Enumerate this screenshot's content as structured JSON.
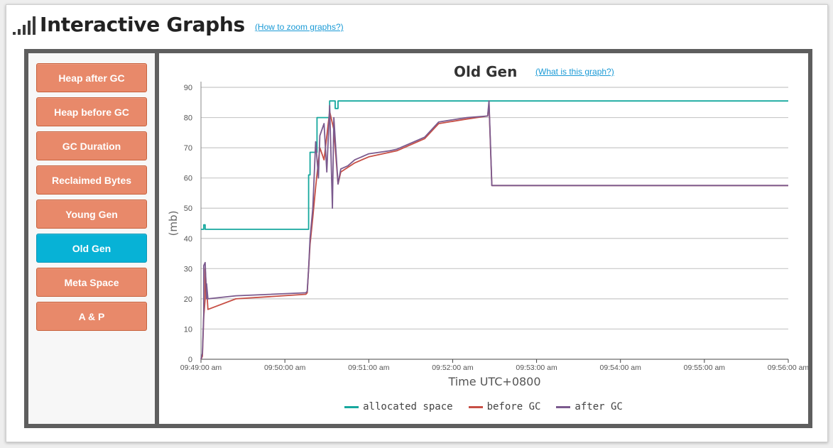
{
  "header": {
    "title": "Interactive Graphs",
    "help_link": "(How to zoom graphs?)"
  },
  "sidebar": {
    "items": [
      {
        "label": "Heap after GC",
        "active": false
      },
      {
        "label": "Heap before GC",
        "active": false
      },
      {
        "label": "GC Duration",
        "active": false
      },
      {
        "label": "Reclaimed Bytes",
        "active": false
      },
      {
        "label": "Young Gen",
        "active": false
      },
      {
        "label": "Old Gen",
        "active": true
      },
      {
        "label": "Meta Space",
        "active": false
      },
      {
        "label": "A & P",
        "active": false
      }
    ]
  },
  "colors": {
    "allocated": "#17a89e",
    "before": "#c74f45",
    "after": "#7b5a8e",
    "button": "#e8896a",
    "button_active": "#07b2d6"
  },
  "chart_data": {
    "type": "line",
    "title": "Old Gen",
    "help_link": "(What is this graph?)",
    "xlabel": "Time UTC+0800",
    "ylabel": "(mb)",
    "ylim": [
      0,
      90
    ],
    "xlim": [
      "09:49:00",
      "09:56:00"
    ],
    "yticks": [
      "0",
      "10",
      "20",
      "30",
      "40",
      "50",
      "60",
      "70",
      "80",
      "90"
    ],
    "xticks": [
      "09:49:00 am",
      "09:50:00 am",
      "09:51:00 am",
      "09:52:00 am",
      "09:53:00 am",
      "09:54:00 am",
      "09:55:00 am",
      "09:56:00 am"
    ],
    "grid": true,
    "legend_position": "bottom",
    "series": [
      {
        "name": "allocated space",
        "x": [
          "09:49:00",
          "09:49:02",
          "09:49:02",
          "09:49:03",
          "09:49:03",
          "09:50:17",
          "09:50:17",
          "09:50:18",
          "09:50:18",
          "09:50:20",
          "09:50:20",
          "09:50:23",
          "09:50:23",
          "09:50:32",
          "09:50:32",
          "09:50:36",
          "09:50:36",
          "09:50:38",
          "09:50:38",
          "09:56:00"
        ],
        "y": [
          43,
          43,
          44.5,
          44.5,
          43,
          43,
          61,
          61,
          68.5,
          68.5,
          68.5,
          68.5,
          80,
          80,
          85.5,
          85.5,
          83,
          83,
          85.5,
          85.5
        ]
      },
      {
        "name": "before GC",
        "x": [
          "09:49:00",
          "09:49:01",
          "09:49:02",
          "09:49:03",
          "09:49:03",
          "09:49:04",
          "09:49:04",
          "09:49:05",
          "09:49:25",
          "09:50:15",
          "09:50:16",
          "09:50:17",
          "09:50:18",
          "09:50:20",
          "09:50:22",
          "09:50:25",
          "09:50:28",
          "09:50:32",
          "09:50:35",
          "09:50:38",
          "09:50:40",
          "09:50:45",
          "09:50:50",
          "09:51:00",
          "09:51:15",
          "09:51:20",
          "09:51:35",
          "09:51:40",
          "09:51:50",
          "09:52:10",
          "09:52:25",
          "09:52:26",
          "09:52:28",
          "09:56:00"
        ],
        "y": [
          0,
          1,
          14,
          20,
          30,
          22,
          24,
          16.5,
          20,
          21.5,
          22,
          30,
          38,
          47,
          57,
          70,
          66,
          82,
          76,
          58,
          62,
          63.5,
          65,
          67,
          68.5,
          69,
          72,
          73,
          78,
          79.5,
          80.5,
          84.5,
          57.5,
          57.5
        ]
      },
      {
        "name": "after GC",
        "x": [
          "09:49:00",
          "09:49:01",
          "09:49:02",
          "09:49:02",
          "09:49:03",
          "09:49:04",
          "09:49:04",
          "09:49:05",
          "09:49:25",
          "09:50:15",
          "09:50:16",
          "09:50:17",
          "09:50:18",
          "09:50:20",
          "09:50:22",
          "09:50:24",
          "09:50:25",
          "09:50:28",
          "09:50:30",
          "09:50:32",
          "09:50:34",
          "09:50:35",
          "09:50:38",
          "09:50:40",
          "09:50:45",
          "09:50:50",
          "09:51:00",
          "09:51:15",
          "09:51:20",
          "09:51:35",
          "09:51:40",
          "09:51:50",
          "09:52:10",
          "09:52:25",
          "09:52:26",
          "09:52:28",
          "09:56:00"
        ],
        "y": [
          0,
          2,
          15,
          31,
          32,
          20,
          25,
          20,
          21,
          22,
          22.5,
          30,
          40,
          50,
          72,
          60,
          74,
          78,
          62,
          84,
          50,
          80,
          58,
          63,
          64,
          66,
          68,
          69,
          69.5,
          72.5,
          73.5,
          78.5,
          80,
          80.5,
          85.5,
          57.5,
          57.5
        ]
      }
    ]
  }
}
